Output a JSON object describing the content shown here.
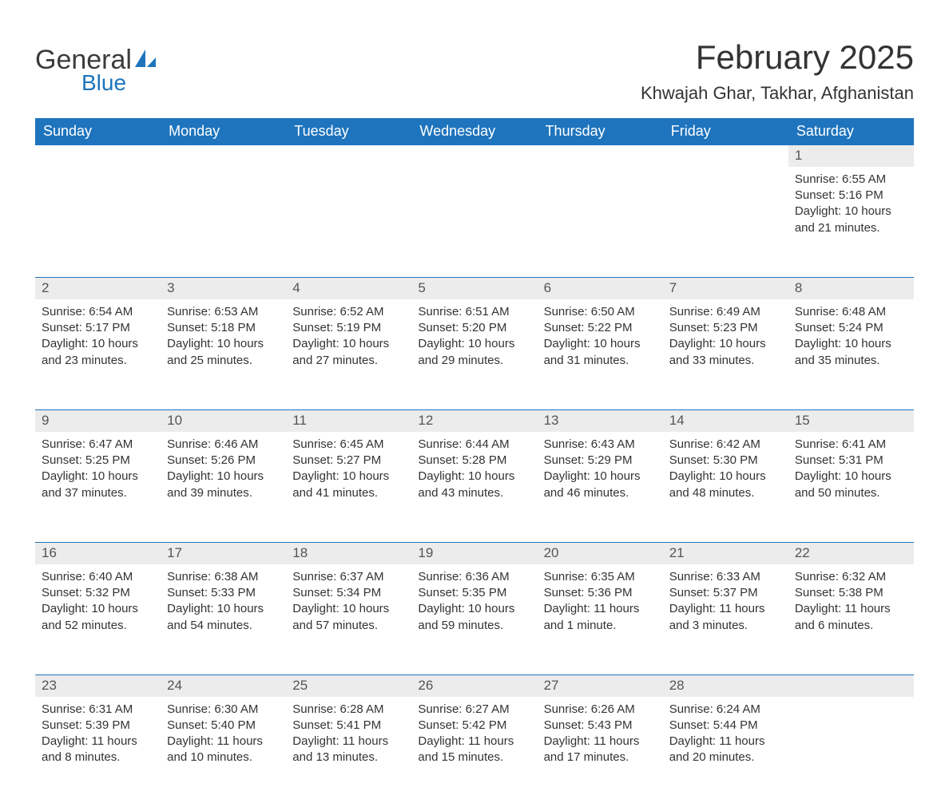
{
  "brand": {
    "word1": "General",
    "word2": "Blue",
    "logo_fill": "#1e74bd"
  },
  "title": "February 2025",
  "location": "Khwajah Ghar, Takhar, Afghanistan",
  "colors": {
    "header_bg": "#1e74bd",
    "header_fg": "#ffffff",
    "row_bg": "#ececec",
    "row_border": "#1e74bd",
    "text": "#333333",
    "bg": "#ffffff"
  },
  "fonts": {
    "title_size": 42,
    "location_size": 22,
    "th_size": 18,
    "daynum_size": 17,
    "body_size": 15
  },
  "days_of_week": [
    "Sunday",
    "Monday",
    "Tuesday",
    "Wednesday",
    "Thursday",
    "Friday",
    "Saturday"
  ],
  "weeks": [
    [
      null,
      null,
      null,
      null,
      null,
      null,
      {
        "n": "1",
        "sunrise": "Sunrise: 6:55 AM",
        "sunset": "Sunset: 5:16 PM",
        "daylight": "Daylight: 10 hours and 21 minutes."
      }
    ],
    [
      {
        "n": "2",
        "sunrise": "Sunrise: 6:54 AM",
        "sunset": "Sunset: 5:17 PM",
        "daylight": "Daylight: 10 hours and 23 minutes."
      },
      {
        "n": "3",
        "sunrise": "Sunrise: 6:53 AM",
        "sunset": "Sunset: 5:18 PM",
        "daylight": "Daylight: 10 hours and 25 minutes."
      },
      {
        "n": "4",
        "sunrise": "Sunrise: 6:52 AM",
        "sunset": "Sunset: 5:19 PM",
        "daylight": "Daylight: 10 hours and 27 minutes."
      },
      {
        "n": "5",
        "sunrise": "Sunrise: 6:51 AM",
        "sunset": "Sunset: 5:20 PM",
        "daylight": "Daylight: 10 hours and 29 minutes."
      },
      {
        "n": "6",
        "sunrise": "Sunrise: 6:50 AM",
        "sunset": "Sunset: 5:22 PM",
        "daylight": "Daylight: 10 hours and 31 minutes."
      },
      {
        "n": "7",
        "sunrise": "Sunrise: 6:49 AM",
        "sunset": "Sunset: 5:23 PM",
        "daylight": "Daylight: 10 hours and 33 minutes."
      },
      {
        "n": "8",
        "sunrise": "Sunrise: 6:48 AM",
        "sunset": "Sunset: 5:24 PM",
        "daylight": "Daylight: 10 hours and 35 minutes."
      }
    ],
    [
      {
        "n": "9",
        "sunrise": "Sunrise: 6:47 AM",
        "sunset": "Sunset: 5:25 PM",
        "daylight": "Daylight: 10 hours and 37 minutes."
      },
      {
        "n": "10",
        "sunrise": "Sunrise: 6:46 AM",
        "sunset": "Sunset: 5:26 PM",
        "daylight": "Daylight: 10 hours and 39 minutes."
      },
      {
        "n": "11",
        "sunrise": "Sunrise: 6:45 AM",
        "sunset": "Sunset: 5:27 PM",
        "daylight": "Daylight: 10 hours and 41 minutes."
      },
      {
        "n": "12",
        "sunrise": "Sunrise: 6:44 AM",
        "sunset": "Sunset: 5:28 PM",
        "daylight": "Daylight: 10 hours and 43 minutes."
      },
      {
        "n": "13",
        "sunrise": "Sunrise: 6:43 AM",
        "sunset": "Sunset: 5:29 PM",
        "daylight": "Daylight: 10 hours and 46 minutes."
      },
      {
        "n": "14",
        "sunrise": "Sunrise: 6:42 AM",
        "sunset": "Sunset: 5:30 PM",
        "daylight": "Daylight: 10 hours and 48 minutes."
      },
      {
        "n": "15",
        "sunrise": "Sunrise: 6:41 AM",
        "sunset": "Sunset: 5:31 PM",
        "daylight": "Daylight: 10 hours and 50 minutes."
      }
    ],
    [
      {
        "n": "16",
        "sunrise": "Sunrise: 6:40 AM",
        "sunset": "Sunset: 5:32 PM",
        "daylight": "Daylight: 10 hours and 52 minutes."
      },
      {
        "n": "17",
        "sunrise": "Sunrise: 6:38 AM",
        "sunset": "Sunset: 5:33 PM",
        "daylight": "Daylight: 10 hours and 54 minutes."
      },
      {
        "n": "18",
        "sunrise": "Sunrise: 6:37 AM",
        "sunset": "Sunset: 5:34 PM",
        "daylight": "Daylight: 10 hours and 57 minutes."
      },
      {
        "n": "19",
        "sunrise": "Sunrise: 6:36 AM",
        "sunset": "Sunset: 5:35 PM",
        "daylight": "Daylight: 10 hours and 59 minutes."
      },
      {
        "n": "20",
        "sunrise": "Sunrise: 6:35 AM",
        "sunset": "Sunset: 5:36 PM",
        "daylight": "Daylight: 11 hours and 1 minute."
      },
      {
        "n": "21",
        "sunrise": "Sunrise: 6:33 AM",
        "sunset": "Sunset: 5:37 PM",
        "daylight": "Daylight: 11 hours and 3 minutes."
      },
      {
        "n": "22",
        "sunrise": "Sunrise: 6:32 AM",
        "sunset": "Sunset: 5:38 PM",
        "daylight": "Daylight: 11 hours and 6 minutes."
      }
    ],
    [
      {
        "n": "23",
        "sunrise": "Sunrise: 6:31 AM",
        "sunset": "Sunset: 5:39 PM",
        "daylight": "Daylight: 11 hours and 8 minutes."
      },
      {
        "n": "24",
        "sunrise": "Sunrise: 6:30 AM",
        "sunset": "Sunset: 5:40 PM",
        "daylight": "Daylight: 11 hours and 10 minutes."
      },
      {
        "n": "25",
        "sunrise": "Sunrise: 6:28 AM",
        "sunset": "Sunset: 5:41 PM",
        "daylight": "Daylight: 11 hours and 13 minutes."
      },
      {
        "n": "26",
        "sunrise": "Sunrise: 6:27 AM",
        "sunset": "Sunset: 5:42 PM",
        "daylight": "Daylight: 11 hours and 15 minutes."
      },
      {
        "n": "27",
        "sunrise": "Sunrise: 6:26 AM",
        "sunset": "Sunset: 5:43 PM",
        "daylight": "Daylight: 11 hours and 17 minutes."
      },
      {
        "n": "28",
        "sunrise": "Sunrise: 6:24 AM",
        "sunset": "Sunset: 5:44 PM",
        "daylight": "Daylight: 11 hours and 20 minutes."
      },
      null
    ]
  ]
}
